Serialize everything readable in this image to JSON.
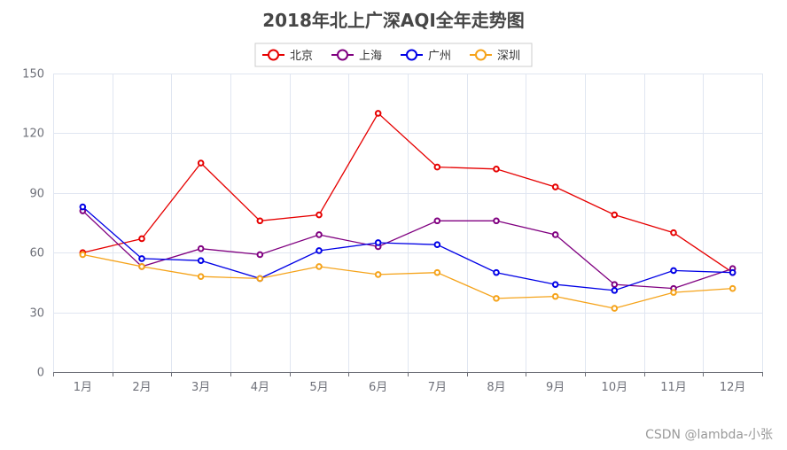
{
  "chart_data": {
    "type": "line",
    "title": "2018年北上广深AQI全年走势图",
    "categories": [
      "1月",
      "2月",
      "3月",
      "4月",
      "5月",
      "6月",
      "7月",
      "8月",
      "9月",
      "10月",
      "11月",
      "12月"
    ],
    "ylim": [
      0,
      150
    ],
    "yticks": [
      0,
      30,
      60,
      90,
      120,
      150
    ],
    "grid": true,
    "legend_position": "top-center",
    "series": [
      {
        "name": "北京",
        "color": "#e60000",
        "values": [
          60,
          67,
          105,
          76,
          79,
          130,
          103,
          102,
          93,
          79,
          70,
          50
        ]
      },
      {
        "name": "上海",
        "color": "#800080",
        "values": [
          81,
          53,
          62,
          59,
          69,
          63,
          76,
          76,
          69,
          44,
          42,
          52
        ]
      },
      {
        "name": "广州",
        "color": "#0000e6",
        "values": [
          83,
          57,
          56,
          47,
          61,
          65,
          64,
          50,
          44,
          41,
          51,
          50
        ]
      },
      {
        "name": "深圳",
        "color": "#f5a31a",
        "values": [
          59,
          53,
          48,
          47,
          53,
          49,
          50,
          37,
          38,
          32,
          40,
          42
        ]
      }
    ]
  },
  "watermark": "CSDN @lambda-小张"
}
